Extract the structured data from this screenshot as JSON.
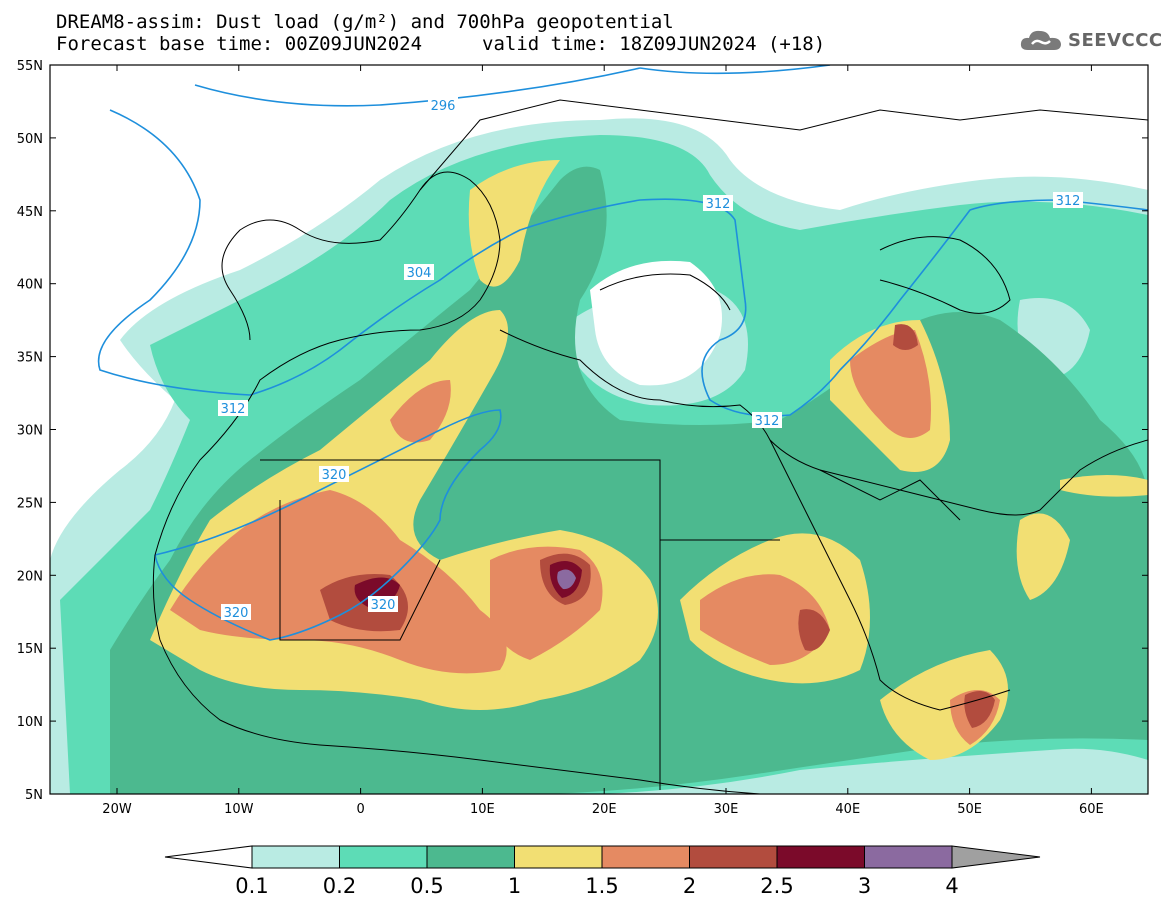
{
  "title": {
    "line1": "DREAM8-assim: Dust load (g/m²) and 700hPa geopotential",
    "line2": "Forecast base time: 00Z09JUN2024",
    "valid": "valid time: 18Z09JUN2024 (+18)"
  },
  "logo": {
    "text": "SEEVCCC",
    "icon": "cloud-icon"
  },
  "axes": {
    "lat_labels": [
      "55N",
      "50N",
      "45N",
      "40N",
      "35N",
      "30N",
      "25N",
      "20N",
      "15N",
      "10N",
      "5N"
    ],
    "lon_labels": [
      "20W",
      "10W",
      "0",
      "10E",
      "20E",
      "30E",
      "40E",
      "50E",
      "60E"
    ]
  },
  "contours": {
    "labels": [
      "296",
      "304",
      "312",
      "312",
      "312",
      "312",
      "320",
      "320",
      "320"
    ]
  },
  "colorbar": {
    "levels": [
      "0.1",
      "0.2",
      "0.5",
      "1",
      "1.5",
      "2",
      "2.5",
      "3",
      "4"
    ],
    "colors": [
      "#ffffff",
      "#b9ebe3",
      "#5ddcb6",
      "#4cb98f",
      "#f2df73",
      "#e58a62",
      "#b24c3e",
      "#7b0a2a",
      "#8b6aa0",
      "#a0a0a0"
    ]
  },
  "map_colors": {
    "ocean": "#ffffff",
    "contour_line": "#1e8fdc",
    "coast": "#000000"
  }
}
